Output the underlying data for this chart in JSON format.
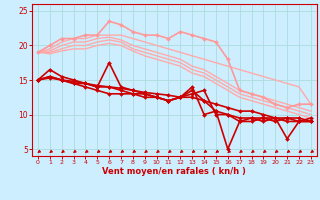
{
  "xlabel": "Vent moyen/en rafales ( kn/h )",
  "xlim": [
    -0.5,
    23.5
  ],
  "ylim": [
    4,
    26
  ],
  "yticks": [
    5,
    10,
    15,
    20,
    25
  ],
  "xticks": [
    0,
    1,
    2,
    3,
    4,
    5,
    6,
    7,
    8,
    9,
    10,
    11,
    12,
    13,
    14,
    15,
    16,
    17,
    18,
    19,
    20,
    21,
    22,
    23
  ],
  "bg_color": "#cceeff",
  "grid_color": "#aadddd",
  "lines": [
    {
      "x": [
        0,
        1,
        2,
        3,
        4,
        5,
        6,
        7,
        8,
        9,
        10,
        11,
        12,
        13,
        14,
        15,
        16,
        17,
        18,
        19,
        20,
        21,
        22,
        23
      ],
      "y": [
        19.0,
        19.5,
        20.5,
        21.0,
        21.0,
        21.5,
        21.5,
        21.5,
        21.0,
        20.5,
        20.0,
        19.5,
        19.0,
        18.5,
        18.0,
        17.5,
        17.0,
        16.5,
        16.0,
        15.5,
        15.0,
        14.5,
        14.0,
        11.5
      ],
      "color": "#ffaaaa",
      "lw": 1.0,
      "marker": null
    },
    {
      "x": [
        0,
        1,
        2,
        3,
        4,
        5,
        6,
        7,
        8,
        9,
        10,
        11,
        12,
        13,
        14,
        15,
        16,
        17,
        18,
        19,
        20,
        21,
        22,
        23
      ],
      "y": [
        19.0,
        19.2,
        20.0,
        20.5,
        20.5,
        21.0,
        21.2,
        20.8,
        20.0,
        19.5,
        19.0,
        18.5,
        18.0,
        17.0,
        16.5,
        15.5,
        14.5,
        13.5,
        13.0,
        12.5,
        12.0,
        11.5,
        11.0,
        10.5
      ],
      "color": "#ffaaaa",
      "lw": 1.0,
      "marker": null
    },
    {
      "x": [
        0,
        1,
        2,
        3,
        4,
        5,
        6,
        7,
        8,
        9,
        10,
        11,
        12,
        13,
        14,
        15,
        16,
        17,
        18,
        19,
        20,
        21,
        22,
        23
      ],
      "y": [
        19.0,
        19.0,
        19.5,
        20.0,
        20.0,
        20.5,
        20.8,
        20.5,
        19.5,
        19.0,
        18.5,
        18.0,
        17.5,
        16.5,
        16.0,
        15.0,
        14.0,
        13.0,
        12.5,
        12.0,
        11.5,
        11.0,
        10.5,
        10.0
      ],
      "color": "#ffaaaa",
      "lw": 1.0,
      "marker": null
    },
    {
      "x": [
        0,
        1,
        2,
        3,
        4,
        5,
        6,
        7,
        8,
        9,
        10,
        11,
        12,
        13,
        14,
        15,
        16,
        17,
        18,
        19,
        20,
        21,
        22,
        23
      ],
      "y": [
        19.0,
        18.8,
        19.2,
        19.5,
        19.5,
        20.0,
        20.3,
        20.0,
        19.2,
        18.5,
        18.0,
        17.5,
        17.0,
        16.0,
        15.5,
        14.5,
        13.5,
        12.5,
        12.0,
        11.5,
        11.0,
        10.5,
        10.0,
        9.5
      ],
      "color": "#ffaaaa",
      "lw": 1.0,
      "marker": null
    },
    {
      "x": [
        0,
        1,
        2,
        3,
        4,
        5,
        6,
        7,
        8,
        9,
        10,
        11,
        12,
        13,
        14,
        15,
        16,
        17,
        18,
        19,
        20,
        21,
        22,
        23
      ],
      "y": [
        19.0,
        20.0,
        21.0,
        21.0,
        21.5,
        21.5,
        23.5,
        23.0,
        22.0,
        21.5,
        21.5,
        21.0,
        22.0,
        21.5,
        21.0,
        20.5,
        18.0,
        13.5,
        13.0,
        12.5,
        11.5,
        11.0,
        11.5,
        11.5
      ],
      "color": "#ff9999",
      "lw": 1.2,
      "marker": "D",
      "ms": 2.0
    },
    {
      "x": [
        0,
        1,
        2,
        3,
        4,
        5,
        6,
        7,
        8,
        9,
        10,
        11,
        12,
        13,
        14,
        15,
        16,
        17,
        18,
        19,
        20,
        21,
        22,
        23
      ],
      "y": [
        15.0,
        16.5,
        15.5,
        15.0,
        14.5,
        14.0,
        17.5,
        14.0,
        13.5,
        13.0,
        12.5,
        12.0,
        12.5,
        13.0,
        13.5,
        10.0,
        10.0,
        9.0,
        9.0,
        9.5,
        9.5,
        9.0,
        9.0,
        9.5
      ],
      "color": "#cc0000",
      "lw": 1.2,
      "marker": "D",
      "ms": 2.0
    },
    {
      "x": [
        0,
        1,
        2,
        3,
        4,
        5,
        6,
        7,
        8,
        9,
        10,
        11,
        12,
        13,
        14,
        15,
        16,
        17,
        18,
        19,
        20,
        21,
        22,
        23
      ],
      "y": [
        15.0,
        15.5,
        15.0,
        14.5,
        14.5,
        14.0,
        14.0,
        13.5,
        13.0,
        13.0,
        12.5,
        12.0,
        12.5,
        13.5,
        12.0,
        10.5,
        10.0,
        9.5,
        9.5,
        9.5,
        9.0,
        9.5,
        9.5,
        9.0
      ],
      "color": "#cc0000",
      "lw": 1.2,
      "marker": "D",
      "ms": 2.0
    },
    {
      "x": [
        0,
        1,
        2,
        3,
        4,
        5,
        6,
        7,
        8,
        9,
        10,
        11,
        12,
        13,
        14,
        15,
        16,
        17,
        18,
        19,
        20,
        21,
        22,
        23
      ],
      "y": [
        15.0,
        15.3,
        15.0,
        14.8,
        14.5,
        14.2,
        14.0,
        13.8,
        13.5,
        13.2,
        13.0,
        12.8,
        12.5,
        12.5,
        12.0,
        11.5,
        11.0,
        10.5,
        10.5,
        10.0,
        9.5,
        9.5,
        9.0,
        9.0
      ],
      "color": "#cc0000",
      "lw": 1.2,
      "marker": "D",
      "ms": 2.0
    },
    {
      "x": [
        0,
        1,
        2,
        3,
        4,
        5,
        6,
        7,
        8,
        9,
        10,
        11,
        12,
        13,
        14,
        15,
        16,
        17,
        18,
        19,
        20,
        21,
        22,
        23
      ],
      "y": [
        15.0,
        15.5,
        15.0,
        14.5,
        14.0,
        13.5,
        13.0,
        13.0,
        13.0,
        12.5,
        12.5,
        12.0,
        12.5,
        14.0,
        10.0,
        10.5,
        5.0,
        9.0,
        9.5,
        9.0,
        9.5,
        6.5,
        9.0,
        9.0
      ],
      "color": "#cc0000",
      "lw": 1.2,
      "marker": "D",
      "ms": 2.0
    }
  ],
  "wind_arrow_char": "←",
  "wind_color": "#cc0000"
}
